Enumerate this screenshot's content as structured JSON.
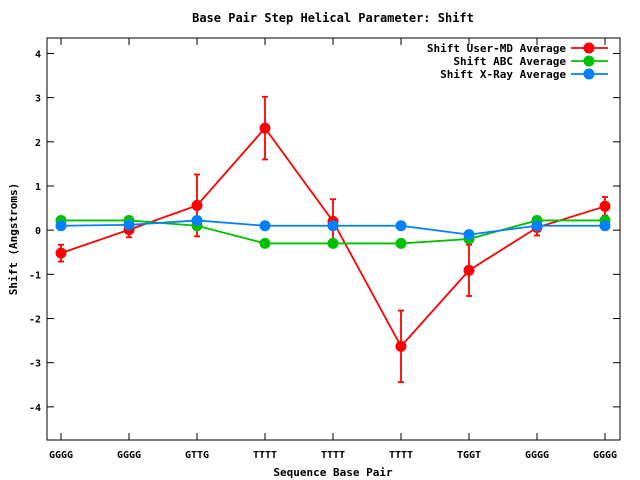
{
  "chart_data": {
    "type": "line",
    "title": "Base Pair Step Helical Parameter: Shift",
    "xlabel": "Sequence Base Pair",
    "ylabel": "Shift (Angstroms)",
    "categories": [
      "GGGG",
      "GGGG",
      "GTTG",
      "TTTT",
      "TTTT",
      "TTTT",
      "TGGT",
      "GGGG",
      "GGGG"
    ],
    "ylim": [
      -4.75,
      4.35
    ],
    "yticks": [
      -4,
      -3,
      -2,
      -1,
      0,
      1,
      2,
      3,
      4
    ],
    "grid": false,
    "legend_position": "top-right",
    "series": [
      {
        "name": "Shift User-MD Average",
        "color": "#ff0000",
        "values": [
          -0.52,
          0.01,
          0.56,
          2.31,
          0.2,
          -2.63,
          -0.91,
          0.06,
          0.54
        ],
        "errors": [
          0.19,
          0.17,
          0.7,
          0.71,
          0.5,
          0.81,
          0.58,
          0.18,
          0.21
        ]
      },
      {
        "name": "Shift ABC Average",
        "color": "#00c000",
        "values": [
          0.22,
          0.22,
          0.1,
          -0.3,
          -0.3,
          -0.3,
          -0.2,
          0.22,
          0.22
        ]
      },
      {
        "name": "Shift X-Ray Average",
        "color": "#0080ff",
        "values": [
          0.1,
          0.12,
          0.22,
          0.1,
          0.1,
          0.1,
          -0.1,
          0.1,
          0.1
        ]
      }
    ]
  }
}
